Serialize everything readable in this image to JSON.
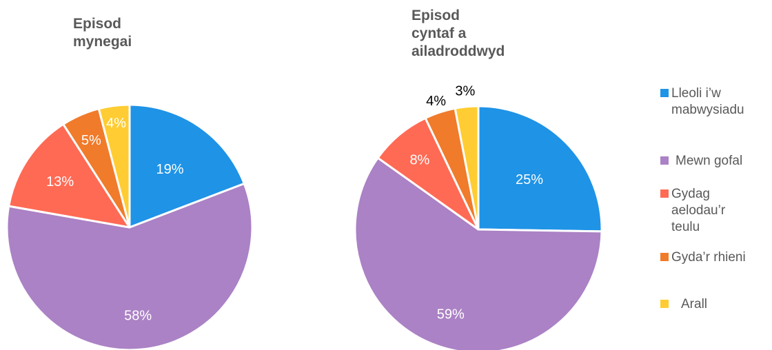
{
  "chart_data": [
    {
      "type": "pie",
      "title": "Episod\nmynegai",
      "categories": [
        "Lleoli i’w mabwysiadu",
        "Mewn gofal",
        "Gydag aelodau’r teulu",
        "Gyda’r rhieni",
        "Arall"
      ],
      "values": [
        19,
        58,
        13,
        5,
        4
      ],
      "labels": [
        "19%",
        "58%",
        "13%",
        "5%",
        "4%"
      ]
    },
    {
      "type": "pie",
      "title": "Episod\ncyntaf a\nailadroddwyd",
      "categories": [
        "Lleoli i’w mabwysiadu",
        "Mewn gofal",
        "Gydag aelodau’r teulu",
        "Gyda’r rhieni",
        "Arall"
      ],
      "values": [
        25,
        59,
        8,
        4,
        3
      ],
      "labels": [
        "25%",
        "59%",
        "8%",
        "4%",
        "3%"
      ]
    }
  ],
  "legend": {
    "position": "right",
    "items": [
      {
        "label": "Lleoli i’w\nmabwysiadu",
        "color": "#1f93e6"
      },
      {
        "label": "Mewn gofal",
        "color": "#ab82c5"
      },
      {
        "label": "Gydag\naelodau’r\nteulu",
        "color": "#ff6a55"
      },
      {
        "label": "Gyda’r rhieni",
        "color": "#f07b2b"
      },
      {
        "label": "Arall",
        "color": "#ffcd33"
      }
    ]
  }
}
